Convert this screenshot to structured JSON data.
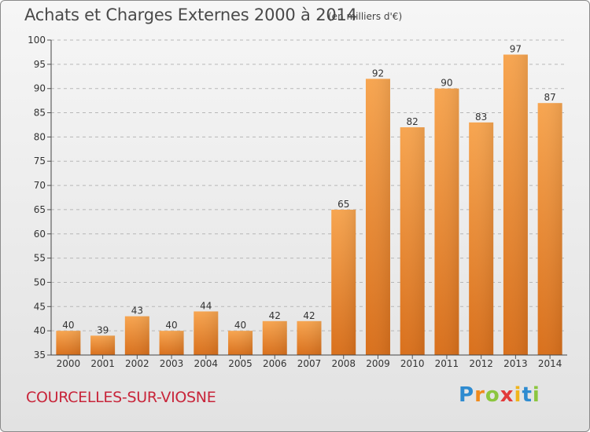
{
  "title": "Achats et Charges Externes 2000 à 2014",
  "subtitle": "(en milliers d'€)",
  "commune": "COURCELLES-SUR-VIOSNE",
  "logo": {
    "letters": [
      "P",
      "r",
      "o",
      "x",
      "i",
      "t",
      "i"
    ],
    "colors": [
      "#2e8bd0",
      "#f08a1c",
      "#8cc63f",
      "#e23a3a",
      "#f0b41c",
      "#2e8bd0",
      "#8cc63f"
    ]
  },
  "chart_data": {
    "type": "bar",
    "categories": [
      "2000",
      "2001",
      "2002",
      "2003",
      "2004",
      "2005",
      "2006",
      "2007",
      "2008",
      "2009",
      "2010",
      "2011",
      "2012",
      "2013",
      "2014"
    ],
    "values": [
      40,
      39,
      43,
      40,
      44,
      40,
      42,
      42,
      65,
      92,
      82,
      90,
      83,
      97,
      87
    ],
    "title": "Achats et Charges Externes 2000 à 2014",
    "ylim": [
      35,
      100
    ],
    "yticks": [
      35,
      40,
      45,
      50,
      55,
      60,
      65,
      70,
      75,
      80,
      85,
      90,
      95,
      100
    ],
    "grid": true,
    "bar_color": "#f08a24"
  }
}
